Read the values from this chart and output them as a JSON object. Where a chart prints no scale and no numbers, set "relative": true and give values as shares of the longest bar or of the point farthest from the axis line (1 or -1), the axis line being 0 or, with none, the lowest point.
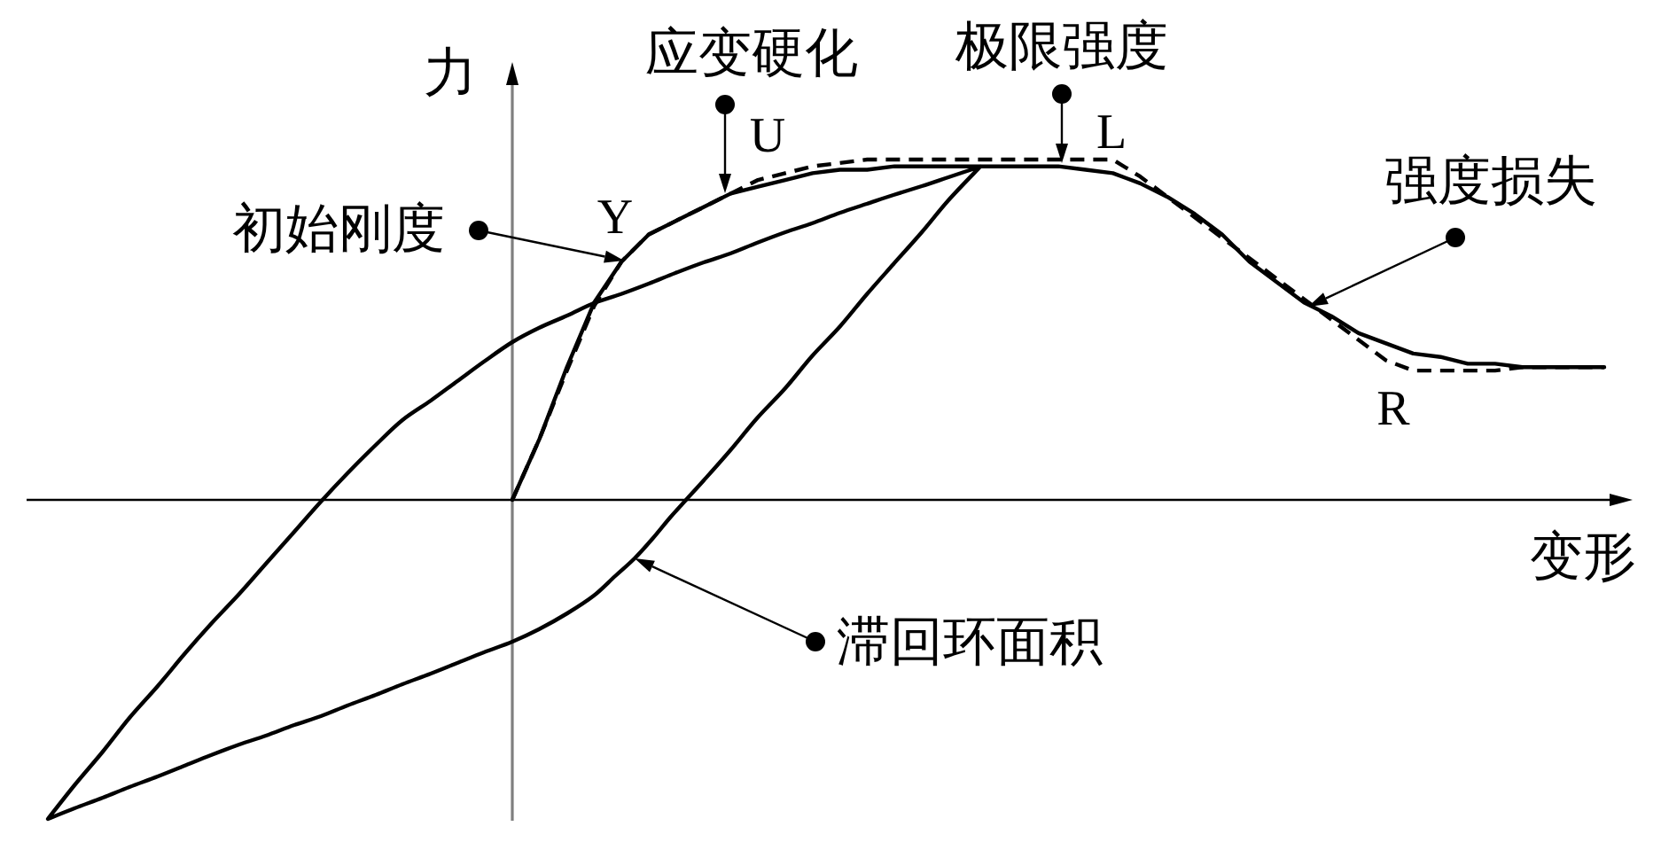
{
  "chart_data": {
    "type": "line",
    "relative": true,
    "xlabel": "变形",
    "ylabel": "力",
    "categories": [
      null,
      null,
      null,
      null,
      null,
      null,
      null,
      null,
      null,
      null,
      null,
      null,
      null,
      null,
      null,
      null,
      null,
      null,
      null,
      null,
      null,
      null,
      null,
      null,
      null,
      null,
      null,
      null,
      null,
      null,
      null,
      null,
      null,
      null,
      null,
      null,
      null,
      null,
      null,
      null,
      null
    ],
    "line_style": "solid",
    "series": [
      {
        "color": "#000000",
        "values": [
          0,
          0.18,
          0.39,
          0.58,
          0.7,
          0.78,
          0.82,
          0.86,
          0.9,
          0.92,
          0.94,
          0.96,
          0.97,
          0.97,
          0.98,
          0.98,
          0.98,
          0.98,
          0.98,
          0.98,
          0.98,
          0.97,
          0.96,
          0.93,
          0.89,
          0.84,
          0.78,
          0.7,
          0.64,
          0.58,
          0.54,
          0.49,
          0.46,
          0.43,
          0.42,
          0.4,
          0.4,
          0.39,
          0.39,
          0.39,
          0.39
        ]
      },
      {
        "color": "#000000",
        "line_style": "dashed",
        "values": [
          0,
          0.18,
          0.38,
          0.57,
          0.7,
          0.78,
          0.82,
          0.86,
          0.9,
          0.94,
          0.96,
          0.98,
          0.99,
          1.0,
          1.0,
          1.0,
          1.0,
          1.0,
          1.0,
          1.0,
          1.0,
          1.0,
          1.0,
          0.95,
          0.89,
          0.83,
          0.77,
          0.71,
          0.65,
          0.59,
          0.53,
          0.47,
          0.41,
          0.38,
          0.38,
          0.38,
          0.38,
          0.39,
          0.39,
          0.39,
          0.39
        ]
      }
    ],
    "annotations": [
      "应变硬化",
      "极限强度",
      "初始刚度",
      "强度损失",
      "滞回环面积",
      "Y",
      "U",
      "L",
      "R"
    ]
  }
}
